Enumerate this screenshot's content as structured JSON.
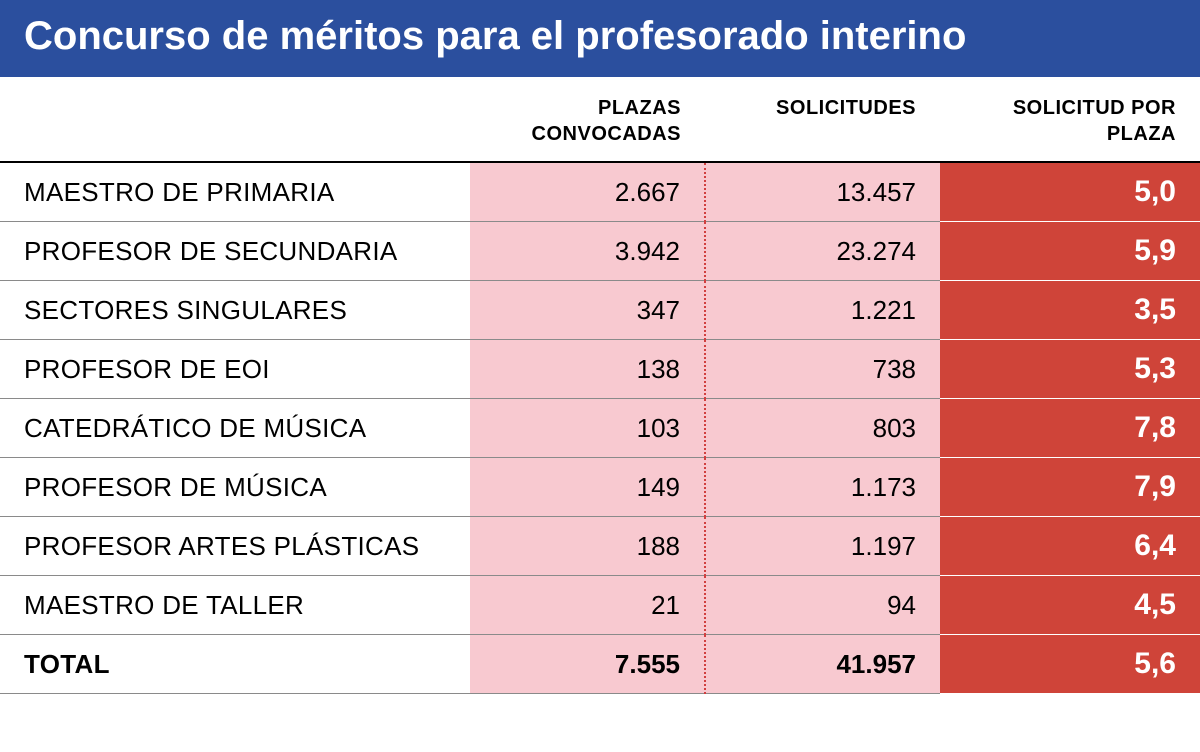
{
  "title": "Concurso de méritos para el profesorado interino",
  "headers": {
    "label": "",
    "plazas": "PLAZAS CONVOCADAS",
    "solicitudes": "SOLICITUDES",
    "ratio": "SOLICITUD POR PLAZA"
  },
  "rows": [
    {
      "label": "MAESTRO DE PRIMARIA",
      "plazas": "2.667",
      "solicitudes": "13.457",
      "ratio": "5,0"
    },
    {
      "label": "PROFESOR DE SECUNDARIA",
      "plazas": "3.942",
      "solicitudes": "23.274",
      "ratio": "5,9"
    },
    {
      "label": "SECTORES SINGULARES",
      "plazas": "347",
      "solicitudes": "1.221",
      "ratio": "3,5"
    },
    {
      "label": "PROFESOR DE EOI",
      "plazas": "138",
      "solicitudes": "738",
      "ratio": "5,3"
    },
    {
      "label": "CATEDRÁTICO DE MÚSICA",
      "plazas": "103",
      "solicitudes": "803",
      "ratio": "7,8"
    },
    {
      "label": "PROFESOR DE MÚSICA",
      "plazas": "149",
      "solicitudes": "1.173",
      "ratio": "7,9"
    },
    {
      "label": "PROFESOR ARTES PLÁSTICAS",
      "plazas": "188",
      "solicitudes": "1.197",
      "ratio": "6,4"
    },
    {
      "label": "MAESTRO DE TALLER",
      "plazas": "21",
      "solicitudes": "94",
      "ratio": "4,5"
    }
  ],
  "total": {
    "label": "TOTAL",
    "plazas": "7.555",
    "solicitudes": "41.957",
    "ratio": "5,6"
  },
  "styling": {
    "title_bg": "#2b4f9e",
    "title_color": "#ffffff",
    "title_fontsize": 40,
    "header_fontsize": 20,
    "body_fontsize": 26,
    "ratio_fontsize": 30,
    "pink_bg": "#f8c9d0",
    "red_bg": "#cf4439",
    "red_text": "#ffffff",
    "row_border": "#8a8a8a",
    "header_border": "#000000",
    "dotted_divider": "#d13f3f",
    "col_widths": {
      "label": 470,
      "plazas": 235,
      "solicitudes": 235,
      "ratio": 260
    }
  }
}
